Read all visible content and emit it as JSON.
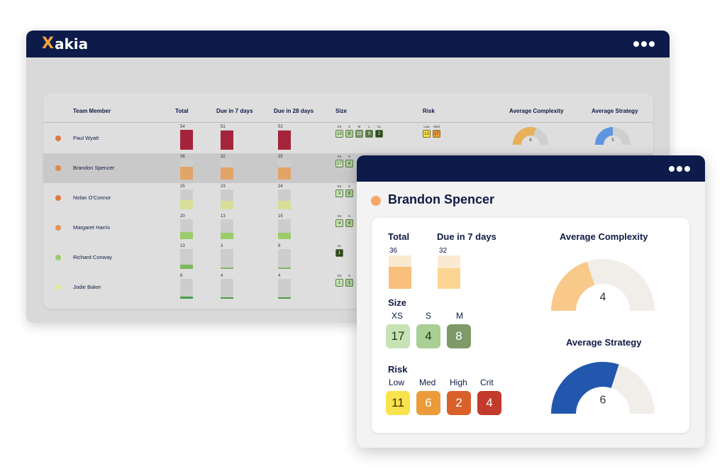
{
  "app": {
    "logo_mark": "X",
    "logo_text": "akia"
  },
  "team_table": {
    "headers": {
      "member": "Team Member",
      "total": "Total",
      "due7": "Due in 7 days",
      "due28": "Due in 28 days",
      "size": "Size",
      "risk": "Risk",
      "complexity": "Average Complexity",
      "strategy": "Average Strategy"
    },
    "rows": [
      {
        "name": "Paul Wyatt",
        "status_color": "#e07a3f",
        "total": "54",
        "due7": "51",
        "due28": "52",
        "bar_level": 1.0,
        "bar_color": "#a4243b",
        "size_labels": [
          "XS",
          "S",
          "M",
          "L",
          "XL"
        ],
        "size_values": [
          "13",
          "8",
          "22",
          "9",
          "2"
        ],
        "risk_labels": [
          "Low",
          "Med"
        ],
        "risk_values": [
          "13",
          "17"
        ],
        "complexity": "6",
        "strategy": "5"
      },
      {
        "name": "Brandon Spencer",
        "status_color": "#e0884f",
        "total": "36",
        "due7": "32",
        "due28": "35",
        "bar_level": 0.65,
        "bar_color": "#e3a467",
        "size_labels": [
          "XS",
          "S"
        ],
        "size_values": [
          "17",
          "4"
        ]
      },
      {
        "name": "Nolan O'Connor",
        "status_color": "#e07a3f",
        "total": "25",
        "due7": "23",
        "due28": "24",
        "bar_level": 0.45,
        "bar_color": "#d8dd9a",
        "size_labels": [
          "XS",
          "S"
        ],
        "size_values": [
          "3",
          "6"
        ]
      },
      {
        "name": "Margaret Harris",
        "status_color": "#e8955a",
        "total": "20",
        "due7": "13",
        "due28": "15",
        "bar_level": 0.35,
        "bar_color": "#9ccb6a",
        "size_labels": [
          "XS",
          "S"
        ],
        "size_values": [
          "4",
          "4"
        ]
      },
      {
        "name": "Richard Conway",
        "status_color": "#9ccc6a",
        "total": "13",
        "due7": "3",
        "due28": "9",
        "bar_level": 0.2,
        "bar_color": "#7fb860",
        "size_labels": [
          "XL"
        ],
        "size_values": [
          "1"
        ]
      },
      {
        "name": "Jodie Baker",
        "status_color": "#dfe6a0",
        "total": "8",
        "due7": "4",
        "due28": "4",
        "bar_level": 0.1,
        "bar_color": "#4d9a4a",
        "size_labels": [
          "XS",
          "S"
        ],
        "size_values": [
          "1",
          "1"
        ]
      }
    ]
  },
  "detail": {
    "name": "Brandon Spencer",
    "status_color": "#f5a766",
    "total_label": "Total",
    "total_value": "36",
    "total_level": 0.65,
    "due7_label": "Due in 7 days",
    "due7_value": "32",
    "due7_level": 0.62,
    "size_label": "Size",
    "size": [
      {
        "label": "XS",
        "value": "17",
        "color": "#c7e3b5",
        "text_color": "#1f3a12"
      },
      {
        "label": "S",
        "value": "4",
        "color": "#a9cf94",
        "text_color": "#1f3a12"
      },
      {
        "label": "M",
        "value": "8",
        "color": "#7d9a68",
        "text_color": "#ffffff"
      }
    ],
    "risk_label": "Risk",
    "risk": [
      {
        "label": "Low",
        "value": "11",
        "color": "#f8e24d",
        "text_color": "#3a2e00"
      },
      {
        "label": "Med",
        "value": "6",
        "color": "#ec9b3a",
        "text_color": "#ffffff"
      },
      {
        "label": "High",
        "value": "2",
        "color": "#d9602b",
        "text_color": "#ffffff"
      },
      {
        "label": "Crit",
        "value": "4",
        "color": "#c23a2b",
        "text_color": "#ffffff"
      }
    ],
    "complexity_label": "Average Complexity",
    "complexity_value": "4",
    "complexity_level": 0.4,
    "complexity_color": "#f9c98a",
    "strategy_label": "Average Strategy",
    "strategy_value": "6",
    "strategy_level": 0.6,
    "strategy_color": "#2157ad"
  }
}
